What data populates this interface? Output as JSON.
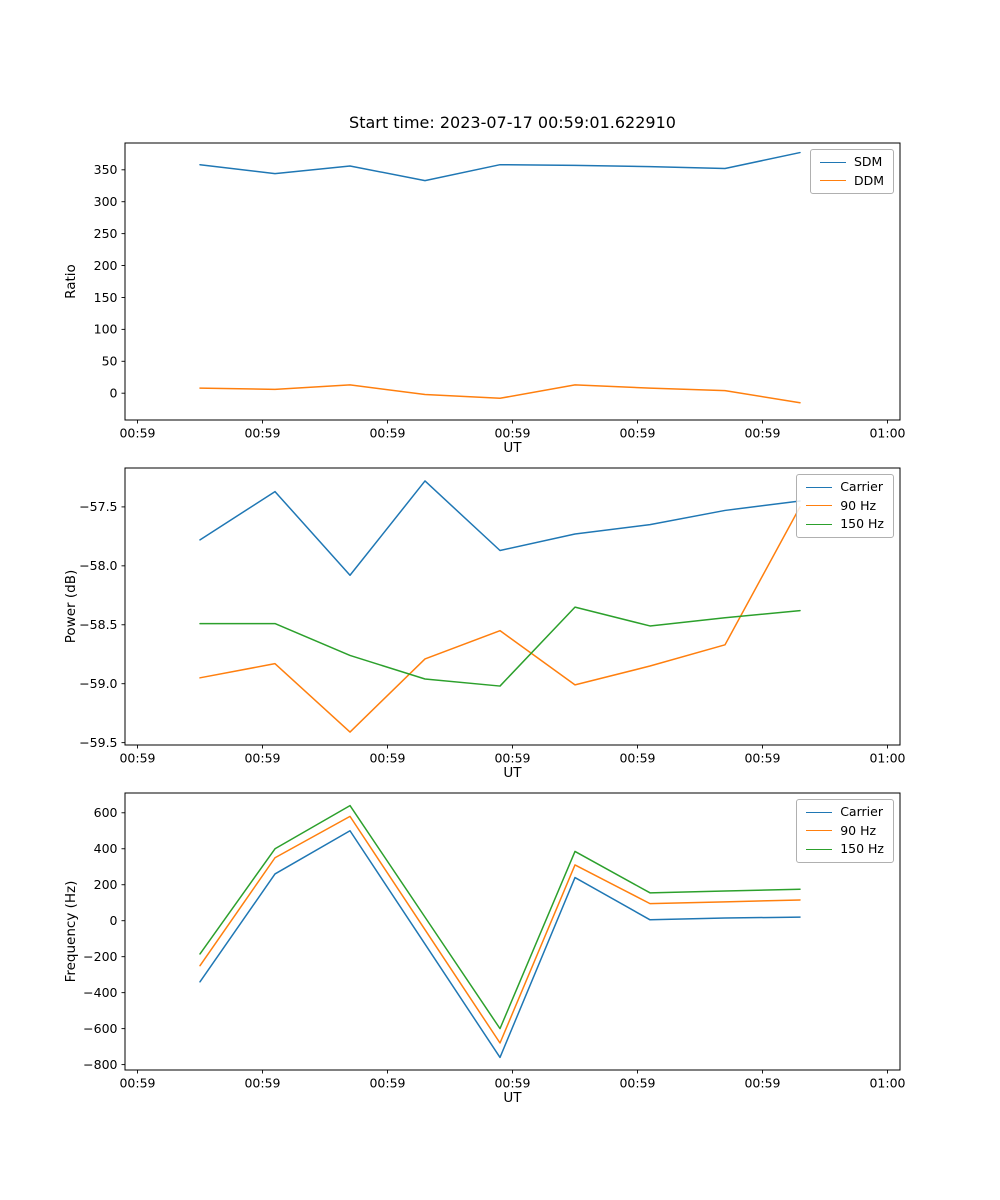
{
  "figure": {
    "title": "Start time: 2023-07-17 00:59:01.622910",
    "background_color": "#ffffff",
    "accent_colors": {
      "blue": "#1f77b4",
      "orange": "#ff7f0e",
      "green": "#2ca02c"
    }
  },
  "chart_data": [
    {
      "type": "line",
      "title": "Start time: 2023-07-17 00:59:01.622910",
      "xlabel": "UT",
      "ylabel": "Ratio",
      "grid": false,
      "legend_position": "upper right",
      "x_seconds": [
        5,
        11,
        17,
        23,
        29,
        35,
        41,
        47,
        53
      ],
      "xlim": [
        -1,
        61
      ],
      "ylim": [
        -42,
        392
      ],
      "xticks": [
        0,
        10,
        20,
        30,
        40,
        50,
        60
      ],
      "xtick_labels": [
        "00:59",
        "00:59",
        "00:59",
        "00:59",
        "00:59",
        "00:59",
        "01:00"
      ],
      "yticks": [
        0,
        50,
        100,
        150,
        200,
        250,
        300,
        350
      ],
      "ytick_labels": [
        "0",
        "50",
        "100",
        "150",
        "200",
        "250",
        "300",
        "350"
      ],
      "series": [
        {
          "name": "SDM",
          "color": "#1f77b4",
          "values": [
            358,
            344,
            356,
            333,
            358,
            357,
            355,
            352,
            377
          ]
        },
        {
          "name": "DDM",
          "color": "#ff7f0e",
          "values": [
            8,
            6,
            13,
            -2,
            -8,
            13,
            8,
            4,
            -15
          ]
        }
      ]
    },
    {
      "type": "line",
      "xlabel": "UT",
      "ylabel": "Power (dB)",
      "grid": false,
      "legend_position": "upper right",
      "x_seconds": [
        5,
        11,
        17,
        23,
        29,
        35,
        41,
        47,
        53
      ],
      "xlim": [
        -1,
        61
      ],
      "ylim": [
        -59.52,
        -57.17
      ],
      "xticks": [
        0,
        10,
        20,
        30,
        40,
        50,
        60
      ],
      "xtick_labels": [
        "00:59",
        "00:59",
        "00:59",
        "00:59",
        "00:59",
        "00:59",
        "01:00"
      ],
      "yticks": [
        -59.5,
        -59.0,
        -58.5,
        -58.0,
        -57.5
      ],
      "ytick_labels": [
        "−59.5",
        "−59.0",
        "−58.5",
        "−58.0",
        "−57.5"
      ],
      "series": [
        {
          "name": "Carrier",
          "color": "#1f77b4",
          "values": [
            -57.78,
            -57.37,
            -58.08,
            -57.28,
            -57.87,
            -57.73,
            -57.65,
            -57.53,
            -57.45
          ]
        },
        {
          "name": "90 Hz",
          "color": "#ff7f0e",
          "values": [
            -58.95,
            -58.83,
            -59.41,
            -58.79,
            -58.55,
            -59.01,
            -58.85,
            -58.67,
            -57.5
          ]
        },
        {
          "name": "150 Hz",
          "color": "#2ca02c",
          "values": [
            -58.49,
            -58.49,
            -58.76,
            -58.96,
            -59.02,
            -58.35,
            -58.51,
            -58.44,
            -58.38
          ]
        }
      ]
    },
    {
      "type": "line",
      "xlabel": "UT",
      "ylabel": "Frequency (Hz)",
      "grid": false,
      "legend_position": "upper right",
      "x_seconds": [
        5,
        11,
        17,
        23,
        29,
        35,
        41,
        47,
        53
      ],
      "xlim": [
        -1,
        61
      ],
      "ylim": [
        -830,
        710
      ],
      "xticks": [
        0,
        10,
        20,
        30,
        40,
        50,
        60
      ],
      "xtick_labels": [
        "00:59",
        "00:59",
        "00:59",
        "00:59",
        "00:59",
        "00:59",
        "01:00"
      ],
      "yticks": [
        -800,
        -600,
        -400,
        -200,
        0,
        200,
        400,
        600
      ],
      "ytick_labels": [
        "−800",
        "−600",
        "−400",
        "−200",
        "0",
        "200",
        "400",
        "600"
      ],
      "series": [
        {
          "name": "Carrier",
          "color": "#1f77b4",
          "values": [
            -340,
            260,
            500,
            -130,
            -760,
            240,
            5,
            15,
            20
          ]
        },
        {
          "name": "90 Hz",
          "color": "#ff7f0e",
          "values": [
            -250,
            350,
            580,
            -50,
            -680,
            310,
            95,
            105,
            115
          ]
        },
        {
          "name": "150 Hz",
          "color": "#2ca02c",
          "values": [
            -185,
            400,
            640,
            20,
            -600,
            385,
            155,
            165,
            175
          ]
        }
      ]
    }
  ]
}
